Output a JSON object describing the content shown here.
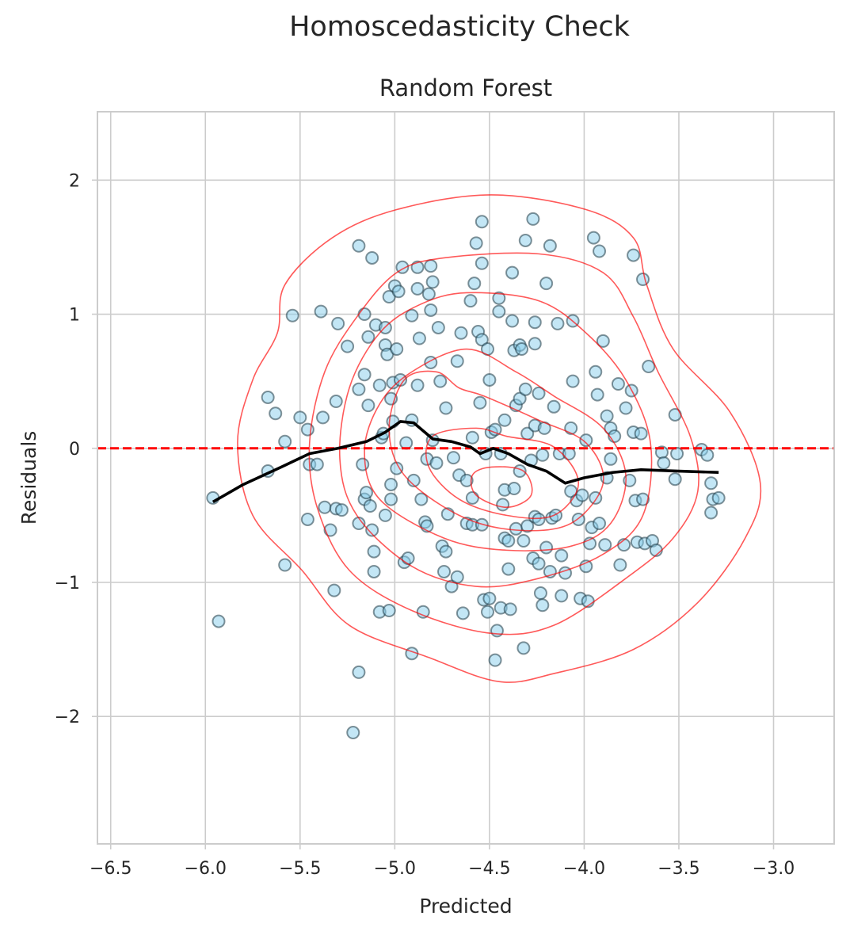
{
  "chart_data": {
    "type": "scatter",
    "suptitle": "Homoscedasticity Check",
    "title": "Random Forest",
    "xlabel": "Predicted",
    "ylabel": "Residuals",
    "xlim": [
      -6.57,
      -2.68
    ],
    "ylim": [
      -2.95,
      2.51
    ],
    "xticks": [
      -6.5,
      -6.0,
      -5.5,
      -5.0,
      -4.5,
      -4.0,
      -3.5,
      -3.0
    ],
    "xtick_labels": [
      "−6.5",
      "−6.0",
      "−5.5",
      "−5.0",
      "−4.5",
      "−4.0",
      "−3.5",
      "−3.0"
    ],
    "yticks": [
      2,
      1,
      0,
      -1,
      -2
    ],
    "ytick_labels": [
      "2",
      "1",
      "0",
      "−1",
      "−2"
    ],
    "grid": true,
    "colors": {
      "point_fill": "#87ceeb",
      "point_edge": "#1f3a46",
      "reference_line": "#ff0000",
      "trend_line": "#000000",
      "contour": "#ff0000",
      "grid": "#cccccc"
    },
    "reference_line_y": 0,
    "points": [
      [
        -5.96,
        -0.37
      ],
      [
        -5.93,
        -1.29
      ],
      [
        -5.67,
        0.38
      ],
      [
        -5.67,
        -0.17
      ],
      [
        -5.63,
        0.26
      ],
      [
        -5.58,
        -0.87
      ],
      [
        -5.58,
        0.05
      ],
      [
        -5.54,
        0.99
      ],
      [
        -5.5,
        0.23
      ],
      [
        -5.46,
        0.14
      ],
      [
        -5.46,
        -0.53
      ],
      [
        -5.45,
        -0.12
      ],
      [
        -5.41,
        -0.12
      ],
      [
        -5.39,
        1.02
      ],
      [
        -5.38,
        0.23
      ],
      [
        -5.37,
        -0.44
      ],
      [
        -5.34,
        -0.61
      ],
      [
        -5.32,
        -1.06
      ],
      [
        -5.31,
        0.35
      ],
      [
        -5.31,
        -0.45
      ],
      [
        -5.3,
        0.93
      ],
      [
        -5.28,
        -0.46
      ],
      [
        -5.25,
        0.76
      ],
      [
        -5.22,
        -2.12
      ],
      [
        -5.19,
        -1.67
      ],
      [
        -5.19,
        -0.56
      ],
      [
        -5.19,
        0.44
      ],
      [
        -5.19,
        1.51
      ],
      [
        -5.17,
        -0.12
      ],
      [
        -5.16,
        -0.38
      ],
      [
        -5.16,
        1.0
      ],
      [
        -5.16,
        0.55
      ],
      [
        -5.15,
        -0.33
      ],
      [
        -5.14,
        0.32
      ],
      [
        -5.14,
        0.83
      ],
      [
        -5.13,
        -0.43
      ],
      [
        -5.12,
        -0.61
      ],
      [
        -5.12,
        1.42
      ],
      [
        -5.11,
        -0.77
      ],
      [
        -5.11,
        -0.92
      ],
      [
        -5.1,
        0.92
      ],
      [
        -5.08,
        0.47
      ],
      [
        -5.08,
        -1.22
      ],
      [
        -5.07,
        0.08
      ],
      [
        -5.06,
        0.11
      ],
      [
        -5.05,
        0.9
      ],
      [
        -5.05,
        0.77
      ],
      [
        -5.05,
        -0.5
      ],
      [
        -5.04,
        0.7
      ],
      [
        -5.03,
        1.13
      ],
      [
        -5.03,
        -1.21
      ],
      [
        -5.02,
        -0.38
      ],
      [
        -5.02,
        0.37
      ],
      [
        -5.02,
        -0.27
      ],
      [
        -5.01,
        0.49
      ],
      [
        -5.01,
        0.2
      ],
      [
        -5.0,
        1.21
      ],
      [
        -4.99,
        -0.15
      ],
      [
        -4.99,
        0.74
      ],
      [
        -4.98,
        1.17
      ],
      [
        -4.97,
        0.51
      ],
      [
        -4.96,
        1.35
      ],
      [
        -4.95,
        -0.85
      ],
      [
        -4.94,
        0.04
      ],
      [
        -4.93,
        -0.82
      ],
      [
        -4.91,
        -1.53
      ],
      [
        -4.91,
        0.99
      ],
      [
        -4.91,
        0.21
      ],
      [
        -4.9,
        -0.24
      ],
      [
        -4.88,
        1.19
      ],
      [
        -4.88,
        1.35
      ],
      [
        -4.88,
        0.47
      ],
      [
        -4.87,
        0.82
      ],
      [
        -4.86,
        -0.38
      ],
      [
        -4.85,
        -1.22
      ],
      [
        -4.84,
        -0.55
      ],
      [
        -4.83,
        -0.58
      ],
      [
        -4.83,
        -0.08
      ],
      [
        -4.82,
        1.15
      ],
      [
        -4.81,
        1.36
      ],
      [
        -4.81,
        1.03
      ],
      [
        -4.81,
        0.64
      ],
      [
        -4.8,
        1.24
      ],
      [
        -4.8,
        0.06
      ],
      [
        -4.78,
        -0.11
      ],
      [
        -4.77,
        0.9
      ],
      [
        -4.76,
        0.5
      ],
      [
        -4.75,
        -0.73
      ],
      [
        -4.74,
        -0.92
      ],
      [
        -4.73,
        0.3
      ],
      [
        -4.73,
        -0.77
      ],
      [
        -4.72,
        -0.49
      ],
      [
        -4.7,
        -1.03
      ],
      [
        -4.69,
        -0.07
      ],
      [
        -4.67,
        0.65
      ],
      [
        -4.67,
        -0.96
      ],
      [
        -4.66,
        -0.2
      ],
      [
        -4.65,
        0.86
      ],
      [
        -4.64,
        -1.23
      ],
      [
        -4.62,
        -0.24
      ],
      [
        -4.62,
        -0.56
      ],
      [
        -4.6,
        1.1
      ],
      [
        -4.59,
        -0.57
      ],
      [
        -4.59,
        0.08
      ],
      [
        -4.59,
        -0.37
      ],
      [
        -4.58,
        1.23
      ],
      [
        -4.57,
        1.53
      ],
      [
        -4.56,
        0.87
      ],
      [
        -4.55,
        0.34
      ],
      [
        -4.54,
        1.69
      ],
      [
        -4.54,
        -0.57
      ],
      [
        -4.54,
        0.81
      ],
      [
        -4.54,
        1.38
      ],
      [
        -4.53,
        -1.13
      ],
      [
        -4.52,
        -0.04
      ],
      [
        -4.51,
        0.74
      ],
      [
        -4.51,
        -1.22
      ],
      [
        -4.5,
        -1.12
      ],
      [
        -4.5,
        0.51
      ],
      [
        -4.49,
        0.12
      ],
      [
        -4.47,
        0.14
      ],
      [
        -4.47,
        -1.58
      ],
      [
        -4.46,
        -1.36
      ],
      [
        -4.45,
        1.12
      ],
      [
        -4.45,
        1.02
      ],
      [
        -4.44,
        -1.19
      ],
      [
        -4.44,
        -0.04
      ],
      [
        -4.43,
        -0.42
      ],
      [
        -4.42,
        0.21
      ],
      [
        -4.42,
        -0.31
      ],
      [
        -4.42,
        -0.67
      ],
      [
        -4.4,
        -0.9
      ],
      [
        -4.4,
        -0.69
      ],
      [
        -4.39,
        -1.2
      ],
      [
        -4.38,
        0.95
      ],
      [
        -4.38,
        1.31
      ],
      [
        -4.37,
        -0.3
      ],
      [
        -4.37,
        0.73
      ],
      [
        -4.36,
        -0.6
      ],
      [
        -4.36,
        0.32
      ],
      [
        -4.34,
        0.37
      ],
      [
        -4.34,
        0.77
      ],
      [
        -4.34,
        -0.17
      ],
      [
        -4.33,
        0.74
      ],
      [
        -4.32,
        -0.69
      ],
      [
        -4.32,
        -1.49
      ],
      [
        -4.31,
        1.55
      ],
      [
        -4.31,
        0.44
      ],
      [
        -4.3,
        0.11
      ],
      [
        -4.3,
        -0.58
      ],
      [
        -4.28,
        -0.09
      ],
      [
        -4.27,
        -0.82
      ],
      [
        -4.27,
        1.71
      ],
      [
        -4.26,
        0.78
      ],
      [
        -4.26,
        -0.51
      ],
      [
        -4.26,
        0.94
      ],
      [
        -4.26,
        0.17
      ],
      [
        -4.24,
        -0.53
      ],
      [
        -4.24,
        -0.86
      ],
      [
        -4.24,
        0.41
      ],
      [
        -4.23,
        -1.08
      ],
      [
        -4.22,
        -0.05
      ],
      [
        -4.22,
        -1.17
      ],
      [
        -4.21,
        0.15
      ],
      [
        -4.2,
        1.23
      ],
      [
        -4.2,
        -0.74
      ],
      [
        -4.18,
        -0.92
      ],
      [
        -4.18,
        1.51
      ],
      [
        -4.17,
        -0.52
      ],
      [
        -4.16,
        0.31
      ],
      [
        -4.15,
        -0.5
      ],
      [
        -4.14,
        0.93
      ],
      [
        -4.13,
        -0.04
      ],
      [
        -4.12,
        -0.8
      ],
      [
        -4.12,
        -1.1
      ],
      [
        -4.1,
        -0.93
      ],
      [
        -4.08,
        -0.04
      ],
      [
        -4.07,
        -0.32
      ],
      [
        -4.07,
        0.15
      ],
      [
        -4.06,
        0.95
      ],
      [
        -4.06,
        0.5
      ],
      [
        -4.04,
        -0.39
      ],
      [
        -4.03,
        -0.53
      ],
      [
        -4.02,
        -1.12
      ],
      [
        -4.01,
        -0.35
      ],
      [
        -3.99,
        -0.88
      ],
      [
        -3.99,
        0.06
      ],
      [
        -3.98,
        -1.14
      ],
      [
        -3.97,
        -0.71
      ],
      [
        -3.96,
        -0.59
      ],
      [
        -3.95,
        1.57
      ],
      [
        -3.94,
        -0.37
      ],
      [
        -3.94,
        0.57
      ],
      [
        -3.93,
        0.4
      ],
      [
        -3.92,
        1.47
      ],
      [
        -3.92,
        -0.56
      ],
      [
        -3.9,
        0.8
      ],
      [
        -3.89,
        -0.72
      ],
      [
        -3.88,
        -0.22
      ],
      [
        -3.88,
        0.24
      ],
      [
        -3.86,
        0.15
      ],
      [
        -3.86,
        -0.08
      ],
      [
        -3.84,
        0.09
      ],
      [
        -3.82,
        0.48
      ],
      [
        -3.81,
        -0.87
      ],
      [
        -3.79,
        -0.72
      ],
      [
        -3.78,
        0.3
      ],
      [
        -3.76,
        -0.24
      ],
      [
        -3.75,
        0.43
      ],
      [
        -3.74,
        1.44
      ],
      [
        -3.74,
        0.12
      ],
      [
        -3.73,
        -0.39
      ],
      [
        -3.72,
        -0.7
      ],
      [
        -3.7,
        0.11
      ],
      [
        -3.69,
        -0.38
      ],
      [
        -3.69,
        1.26
      ],
      [
        -3.68,
        -0.71
      ],
      [
        -3.66,
        0.61
      ],
      [
        -3.64,
        -0.69
      ],
      [
        -3.62,
        -0.76
      ],
      [
        -3.59,
        -0.03
      ],
      [
        -3.58,
        -0.11
      ],
      [
        -3.52,
        -0.23
      ],
      [
        -3.52,
        0.25
      ],
      [
        -3.51,
        -0.04
      ],
      [
        -3.38,
        -0.01
      ],
      [
        -3.35,
        -0.05
      ],
      [
        -3.33,
        -0.26
      ],
      [
        -3.33,
        -0.48
      ],
      [
        -3.32,
        -0.38
      ],
      [
        -3.29,
        -0.37
      ]
    ],
    "trend_line": [
      [
        -5.96,
        -0.4
      ],
      [
        -5.8,
        -0.27
      ],
      [
        -5.6,
        -0.14
      ],
      [
        -5.45,
        -0.04
      ],
      [
        -5.3,
        0.0
      ],
      [
        -5.15,
        0.05
      ],
      [
        -5.05,
        0.12
      ],
      [
        -4.97,
        0.2
      ],
      [
        -4.9,
        0.19
      ],
      [
        -4.8,
        0.07
      ],
      [
        -4.7,
        0.05
      ],
      [
        -4.6,
        0.01
      ],
      [
        -4.55,
        -0.04
      ],
      [
        -4.48,
        0.0
      ],
      [
        -4.4,
        -0.04
      ],
      [
        -4.3,
        -0.12
      ],
      [
        -4.2,
        -0.17
      ],
      [
        -4.1,
        -0.26
      ],
      [
        -4.0,
        -0.22
      ],
      [
        -3.85,
        -0.18
      ],
      [
        -3.7,
        -0.16
      ],
      [
        -3.5,
        -0.17
      ],
      [
        -3.29,
        -0.18
      ]
    ],
    "density_contours": [
      [
        [
          -4.49,
          1.89
        ],
        [
          -3.99,
          1.78
        ],
        [
          -3.74,
          1.57
        ],
        [
          -3.67,
          1.22
        ],
        [
          -3.53,
          0.74
        ],
        [
          -3.23,
          0.27
        ],
        [
          -3.07,
          -0.26
        ],
        [
          -3.15,
          -0.67
        ],
        [
          -3.4,
          -1.15
        ],
        [
          -3.74,
          -1.5
        ],
        [
          -4.16,
          -1.68
        ],
        [
          -4.45,
          -1.74
        ],
        [
          -4.82,
          -1.56
        ],
        [
          -5.24,
          -1.32
        ],
        [
          -5.49,
          -0.91
        ],
        [
          -5.75,
          -0.5
        ],
        [
          -5.83,
          0.04
        ],
        [
          -5.75,
          0.51
        ],
        [
          -5.62,
          0.86
        ],
        [
          -5.58,
          1.22
        ],
        [
          -5.33,
          1.57
        ],
        [
          -4.99,
          1.78
        ]
      ],
      [
        [
          -4.74,
          1.42
        ],
        [
          -4.24,
          1.45
        ],
        [
          -3.9,
          1.31
        ],
        [
          -3.74,
          0.98
        ],
        [
          -3.61,
          0.57
        ],
        [
          -3.44,
          0.09
        ],
        [
          -3.4,
          -0.32
        ],
        [
          -3.53,
          -0.67
        ],
        [
          -3.78,
          -0.97
        ],
        [
          -4.16,
          -1.32
        ],
        [
          -4.49,
          -1.38
        ],
        [
          -4.91,
          -1.21
        ],
        [
          -5.24,
          -0.91
        ],
        [
          -5.41,
          -0.44
        ],
        [
          -5.45,
          0.04
        ],
        [
          -5.37,
          0.57
        ],
        [
          -5.2,
          0.98
        ],
        [
          -4.99,
          1.31
        ]
      ],
      [
        [
          -4.62,
          1.16
        ],
        [
          -4.24,
          1.1
        ],
        [
          -3.99,
          0.86
        ],
        [
          -3.78,
          0.51
        ],
        [
          -3.65,
          0.04
        ],
        [
          -3.69,
          -0.5
        ],
        [
          -3.9,
          -0.79
        ],
        [
          -4.24,
          -0.97
        ],
        [
          -4.57,
          -1.03
        ],
        [
          -4.91,
          -0.88
        ],
        [
          -5.2,
          -0.5
        ],
        [
          -5.29,
          -0.08
        ],
        [
          -5.24,
          0.45
        ],
        [
          -5.08,
          0.86
        ],
        [
          -4.87,
          1.07
        ]
      ],
      [
        [
          -4.62,
          0.74
        ],
        [
          -4.36,
          0.57
        ],
        [
          -4.16,
          0.39
        ],
        [
          -3.9,
          0.15
        ],
        [
          -3.78,
          -0.2
        ],
        [
          -3.86,
          -0.56
        ],
        [
          -4.07,
          -0.73
        ],
        [
          -4.41,
          -0.76
        ],
        [
          -4.74,
          -0.67
        ],
        [
          -5.08,
          -0.38
        ],
        [
          -5.16,
          -0.02
        ],
        [
          -5.08,
          0.33
        ],
        [
          -4.91,
          0.57
        ]
      ],
      [
        [
          -4.53,
          0.39
        ],
        [
          -4.24,
          0.21
        ],
        [
          -3.99,
          0.04
        ],
        [
          -3.9,
          -0.26
        ],
        [
          -4.07,
          -0.56
        ],
        [
          -4.36,
          -0.61
        ],
        [
          -4.66,
          -0.5
        ],
        [
          -4.95,
          -0.2
        ],
        [
          -5.03,
          0.15
        ],
        [
          -4.95,
          0.51
        ],
        [
          -4.78,
          0.57
        ],
        [
          -4.66,
          0.45
        ]
      ],
      [
        [
          -4.41,
          0.09
        ],
        [
          -4.16,
          0.01
        ],
        [
          -4.03,
          -0.26
        ],
        [
          -4.16,
          -0.5
        ],
        [
          -4.41,
          -0.5
        ],
        [
          -4.66,
          -0.38
        ],
        [
          -4.82,
          -0.14
        ],
        [
          -4.8,
          0.09
        ],
        [
          -4.57,
          0.15
        ]
      ],
      [
        [
          -4.49,
          -0.14
        ],
        [
          -4.32,
          -0.17
        ],
        [
          -4.28,
          -0.35
        ],
        [
          -4.41,
          -0.44
        ],
        [
          -4.57,
          -0.35
        ],
        [
          -4.59,
          -0.2
        ]
      ]
    ]
  }
}
